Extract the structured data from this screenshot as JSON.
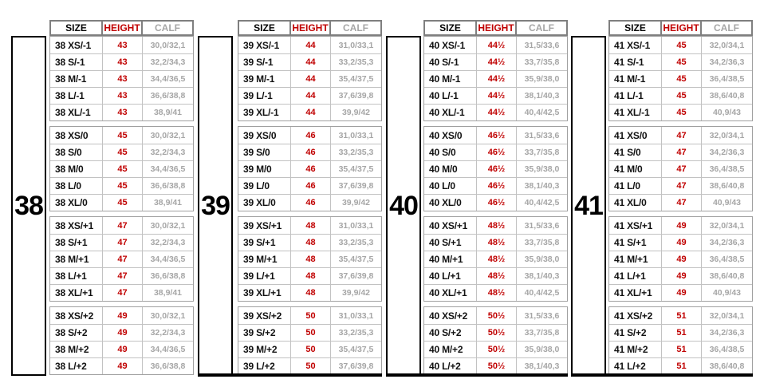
{
  "columns": {
    "size": "SIZE",
    "height": "HEIGHT",
    "calf": "CALF"
  },
  "colors": {
    "height_red": "#c00000",
    "calf_gray": "#a6a6a6",
    "border_black": "#000000"
  },
  "groups": [
    {
      "label": "38",
      "bottom_rule": false,
      "blocks": [
        {
          "rows": [
            [
              "38 XS/-1",
              "43",
              "30,0/32,1"
            ],
            [
              "38 S/-1",
              "43",
              "32,2/34,3"
            ],
            [
              "38 M/-1",
              "43",
              "34,4/36,5"
            ],
            [
              "38 L/-1",
              "43",
              "36,6/38,8"
            ],
            [
              "38 XL/-1",
              "43",
              "38,9/41"
            ]
          ]
        },
        {
          "rows": [
            [
              "38 XS/0",
              "45",
              "30,0/32,1"
            ],
            [
              "38 S/0",
              "45",
              "32,2/34,3"
            ],
            [
              "38 M/0",
              "45",
              "34,4/36,5"
            ],
            [
              "38 L/0",
              "45",
              "36,6/38,8"
            ],
            [
              "38 XL/0",
              "45",
              "38,9/41"
            ]
          ]
        },
        {
          "rows": [
            [
              "38 XS/+1",
              "47",
              "30,0/32,1"
            ],
            [
              "38 S/+1",
              "47",
              "32,2/34,3"
            ],
            [
              "38 M/+1",
              "47",
              "34,4/36,5"
            ],
            [
              "38 L/+1",
              "47",
              "36,6/38,8"
            ],
            [
              "38 XL/+1",
              "47",
              "38,9/41"
            ]
          ]
        },
        {
          "rows": [
            [
              "38 XS/+2",
              "49",
              "30,0/32,1"
            ],
            [
              "38 S/+2",
              "49",
              "32,2/34,3"
            ],
            [
              "38 M/+2",
              "49",
              "34,4/36,5"
            ],
            [
              "38 L/+2",
              "49",
              "36,6/38,8"
            ]
          ]
        }
      ]
    },
    {
      "label": "39",
      "bottom_rule": true,
      "blocks": [
        {
          "rows": [
            [
              "39 XS/-1",
              "44",
              "31,0/33,1"
            ],
            [
              "39 S/-1",
              "44",
              "33,2/35,3"
            ],
            [
              "39 M/-1",
              "44",
              "35,4/37,5"
            ],
            [
              "39 L/-1",
              "44",
              "37,6/39,8"
            ],
            [
              "39 XL/-1",
              "44",
              "39,9/42"
            ]
          ]
        },
        {
          "rows": [
            [
              "39 XS/0",
              "46",
              "31,0/33,1"
            ],
            [
              "39 S/0",
              "46",
              "33,2/35,3"
            ],
            [
              "39 M/0",
              "46",
              "35,4/37,5"
            ],
            [
              "39 L/0",
              "46",
              "37,6/39,8"
            ],
            [
              "39 XL/0",
              "46",
              "39,9/42"
            ]
          ]
        },
        {
          "rows": [
            [
              "39 XS/+1",
              "48",
              "31,0/33,1"
            ],
            [
              "39 S/+1",
              "48",
              "33,2/35,3"
            ],
            [
              "39 M/+1",
              "48",
              "35,4/37,5"
            ],
            [
              "39 L/+1",
              "48",
              "37,6/39,8"
            ],
            [
              "39 XL/+1",
              "48",
              "39,9/42"
            ]
          ]
        },
        {
          "rows": [
            [
              "39 XS/+2",
              "50",
              "31,0/33,1"
            ],
            [
              "39 S/+2",
              "50",
              "33,2/35,3"
            ],
            [
              "39 M/+2",
              "50",
              "35,4/37,5"
            ],
            [
              "39 L/+2",
              "50",
              "37,6/39,8"
            ]
          ]
        }
      ]
    },
    {
      "label": "40",
      "bottom_rule": true,
      "blocks": [
        {
          "rows": [
            [
              "40 XS/-1",
              "44½",
              "31,5/33,6"
            ],
            [
              "40 S/-1",
              "44½",
              "33,7/35,8"
            ],
            [
              "40 M/-1",
              "44½",
              "35,9/38,0"
            ],
            [
              "40 L/-1",
              "44½",
              "38,1/40,3"
            ],
            [
              "40 XL/-1",
              "44½",
              "40,4/42,5"
            ]
          ]
        },
        {
          "rows": [
            [
              "40 XS/0",
              "46½",
              "31,5/33,6"
            ],
            [
              "40 S/0",
              "46½",
              "33,7/35,8"
            ],
            [
              "40 M/0",
              "46½",
              "35,9/38,0"
            ],
            [
              "40 L/0",
              "46½",
              "38,1/40,3"
            ],
            [
              "40 XL/0",
              "46½",
              "40,4/42,5"
            ]
          ]
        },
        {
          "rows": [
            [
              "40 XS/+1",
              "48½",
              "31,5/33,6"
            ],
            [
              "40 S/+1",
              "48½",
              "33,7/35,8"
            ],
            [
              "40 M/+1",
              "48½",
              "35,9/38,0"
            ],
            [
              "40 L/+1",
              "48½",
              "38,1/40,3"
            ],
            [
              "40 XL/+1",
              "48½",
              "40,4/42,5"
            ]
          ]
        },
        {
          "rows": [
            [
              "40 XS/+2",
              "50½",
              "31,5/33,6"
            ],
            [
              "40 S/+2",
              "50½",
              "33,7/35,8"
            ],
            [
              "40 M/+2",
              "50½",
              "35,9/38,0"
            ],
            [
              "40 L/+2",
              "50½",
              "38,1/40,3"
            ]
          ]
        }
      ]
    },
    {
      "label": "41",
      "bottom_rule": true,
      "blocks": [
        {
          "rows": [
            [
              "41 XS/-1",
              "45",
              "32,0/34,1"
            ],
            [
              "41 S/-1",
              "45",
              "34,2/36,3"
            ],
            [
              "41 M/-1",
              "45",
              "36,4/38,5"
            ],
            [
              "41 L/-1",
              "45",
              "38,6/40,8"
            ],
            [
              "41 XL/-1",
              "45",
              "40,9/43"
            ]
          ]
        },
        {
          "rows": [
            [
              "41 XS/0",
              "47",
              "32,0/34,1"
            ],
            [
              "41 S/0",
              "47",
              "34,2/36,3"
            ],
            [
              "41 M/0",
              "47",
              "36,4/38,5"
            ],
            [
              "41 L/0",
              "47",
              "38,6/40,8"
            ],
            [
              "41 XL/0",
              "47",
              "40,9/43"
            ]
          ]
        },
        {
          "rows": [
            [
              "41 XS/+1",
              "49",
              "32,0/34,1"
            ],
            [
              "41 S/+1",
              "49",
              "34,2/36,3"
            ],
            [
              "41 M/+1",
              "49",
              "36,4/38,5"
            ],
            [
              "41 L/+1",
              "49",
              "38,6/40,8"
            ],
            [
              "41 XL/+1",
              "49",
              "40,9/43"
            ]
          ]
        },
        {
          "rows": [
            [
              "41 XS/+2",
              "51",
              "32,0/34,1"
            ],
            [
              "41 S/+2",
              "51",
              "34,2/36,3"
            ],
            [
              "41 M/+2",
              "51",
              "36,4/38,5"
            ],
            [
              "41 L/+2",
              "51",
              "38,6/40,8"
            ]
          ]
        }
      ]
    }
  ]
}
